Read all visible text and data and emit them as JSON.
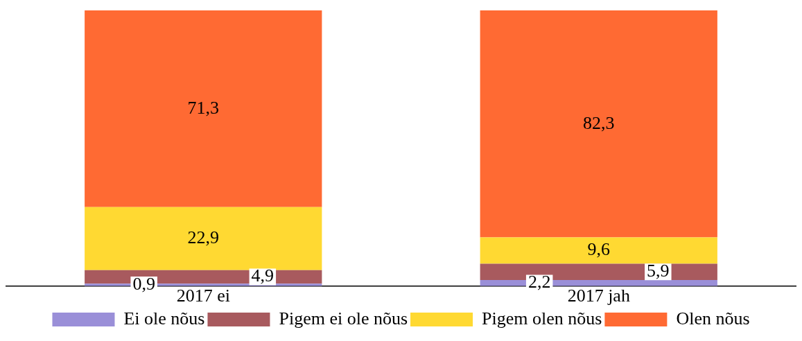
{
  "chart_data": {
    "type": "bar",
    "stacked": true,
    "categories": [
      "2017 ei",
      "2017 jah"
    ],
    "ylim": [
      0,
      100
    ],
    "legend": "bottom",
    "grid": false,
    "tick_labels": "x",
    "series": [
      {
        "name": "Ei ole nõus",
        "color": "#9a8fd8",
        "values": [
          0.9,
          2.2
        ],
        "value_labels": [
          "0,9",
          "2,2"
        ]
      },
      {
        "name": "Pigem ei ole nõus",
        "color": "#a85a5e",
        "values": [
          4.9,
          5.9
        ],
        "value_labels": [
          "4,9",
          "5,9"
        ]
      },
      {
        "name": "Pigem olen nõus",
        "color": "#ffd932",
        "values": [
          22.9,
          9.6
        ],
        "value_labels": [
          "22,9",
          "9,6"
        ]
      },
      {
        "name": "Olen nõus",
        "color": "#ff6a33",
        "values": [
          71.3,
          82.3
        ],
        "value_labels": [
          "71,3",
          "82,3"
        ]
      }
    ]
  }
}
